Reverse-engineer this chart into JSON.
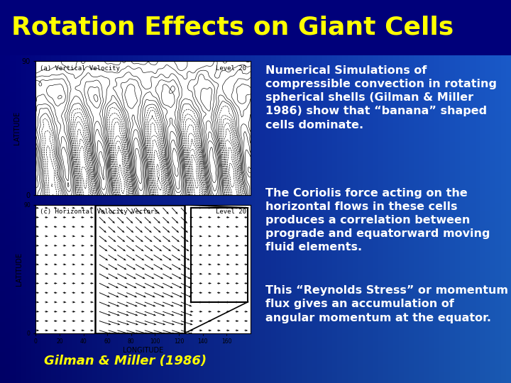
{
  "title": "Rotation Effects on Giant Cells",
  "title_color": "#FFFF00",
  "title_fontsize": 26,
  "title_fontweight": "bold",
  "bg_gradient_left": "#0000AA",
  "bg_gradient_right": "#1a6fd4",
  "text_color": "#FFFFFF",
  "caption": "Gilman & Miller (1986)",
  "caption_color": "#FFFF00",
  "caption_fontsize": 13,
  "paragraph1": "Numerical Simulations of compressible convection in rotating spherical shells (Gilman & Miller 1986) show that “banana” shaped cells dominate.",
  "paragraph2": "The Coriolis force acting on the horizontal flows in these cells produces a correlation between prograde and equatorward moving fluid elements.",
  "paragraph3": "This “Reynolds Stress” or momentum flux gives an accumulation of angular momentum at the equator.",
  "text_fontsize": 11.5
}
